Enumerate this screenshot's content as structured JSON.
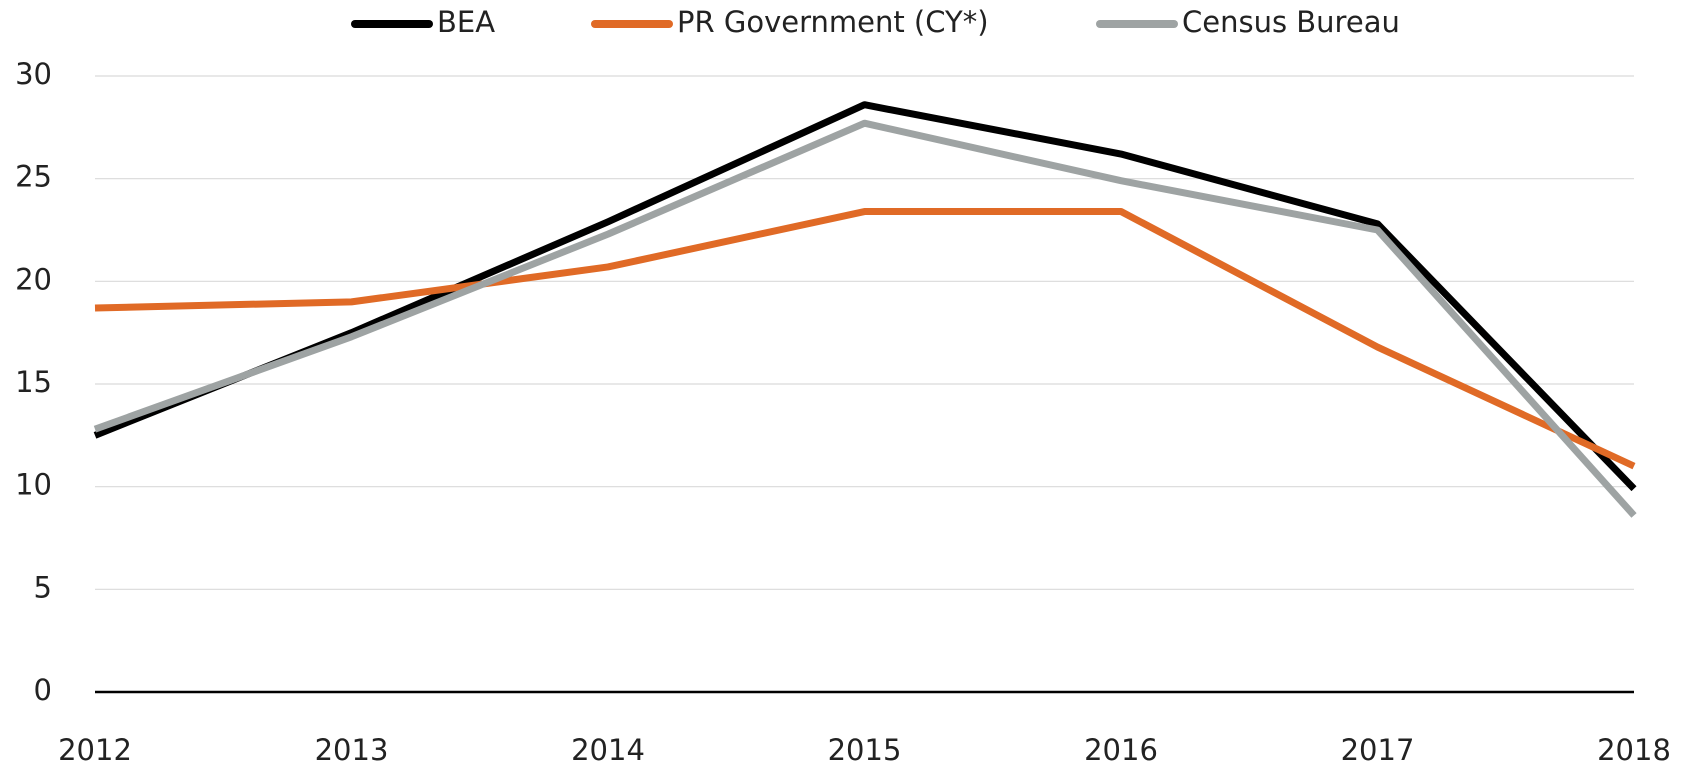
{
  "chart_data": {
    "type": "line",
    "categories": [
      "2012",
      "2013",
      "2014",
      "2015",
      "2016",
      "2017",
      "2018"
    ],
    "series": [
      {
        "name": "BEA",
        "color": "#000000",
        "values": [
          12.5,
          17.5,
          22.9,
          28.6,
          26.2,
          22.8,
          9.9
        ]
      },
      {
        "name": "PR Government (CY*)",
        "color": "#e06a26",
        "values": [
          18.7,
          19.0,
          20.7,
          23.4,
          23.4,
          16.8,
          11.0
        ]
      },
      {
        "name": "Census Bureau",
        "color": "#9ea3a3",
        "values": [
          12.8,
          17.3,
          22.3,
          27.7,
          24.9,
          22.5,
          8.6
        ]
      }
    ],
    "ylim": [
      0,
      30
    ],
    "yticks": [
      0,
      5,
      10,
      15,
      20,
      25,
      30
    ],
    "grid": true,
    "legend": "top"
  }
}
